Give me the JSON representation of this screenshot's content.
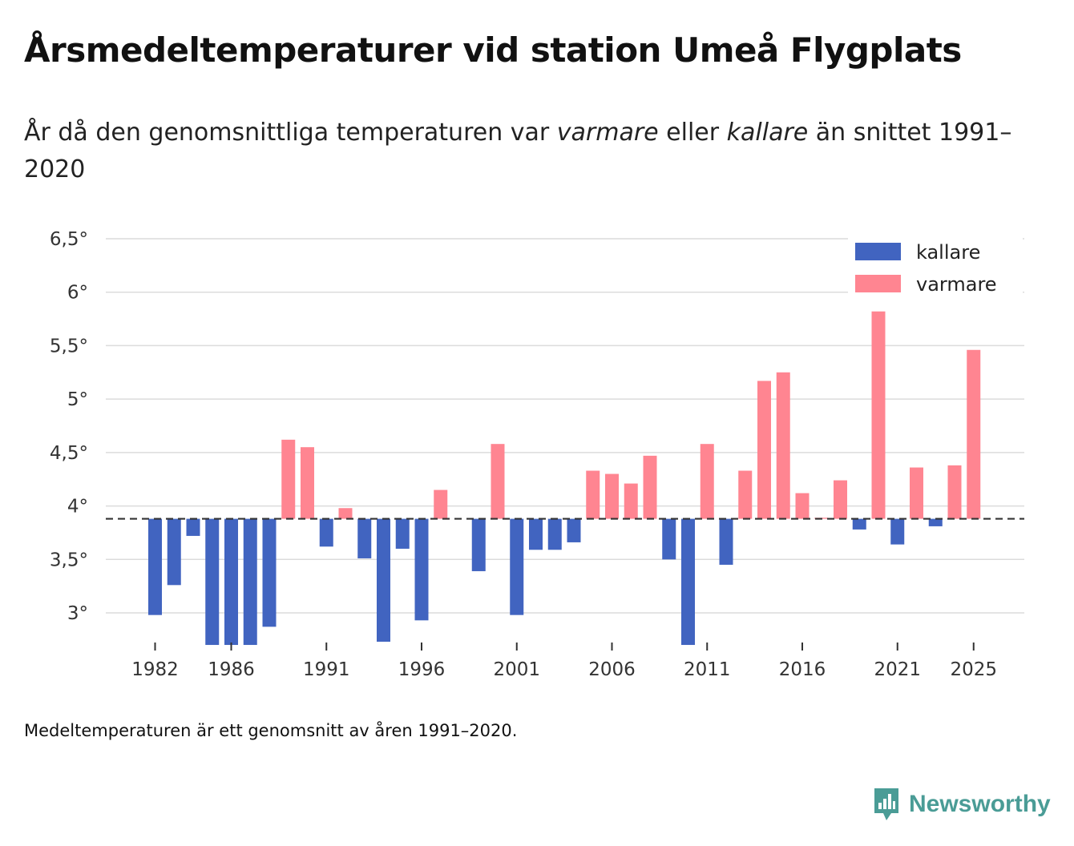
{
  "title": "Årsmedeltemperaturer vid station Umeå Flygplats",
  "subtitle": {
    "part1": "År då den genomsnittliga temperaturen var ",
    "warm_word": "varmare",
    "part2": " eller ",
    "cold_word": "kallare",
    "part3": " än snittet 1991–2020"
  },
  "footnote": "Medeltemperaturen är ett genomsnitt av åren 1991–2020.",
  "brand": "Newsworthy",
  "colors": {
    "kallare": "#4164c0",
    "varmare": "#ff8591",
    "grid": "#dcdcdc",
    "baseline": "#333333",
    "brand": "#4a9c96"
  },
  "chart_data": {
    "type": "bar",
    "title": "Årsmedeltemperaturer vid station Umeå Flygplats",
    "xlabel": "",
    "ylabel": "",
    "baseline": 3.88,
    "ylim": [
      2.7,
      6.5
    ],
    "yticks": [
      3,
      3.5,
      4,
      4.5,
      5,
      5.5,
      6,
      6.5
    ],
    "ytick_labels": [
      "3°",
      "3,5°",
      "4°",
      "4,5°",
      "5°",
      "5,5°",
      "6°",
      "6,5°"
    ],
    "xticks": [
      1982,
      1986,
      1991,
      1996,
      2001,
      2006,
      2011,
      2016,
      2021,
      2025
    ],
    "legend": [
      {
        "key": "kallare",
        "label": "kallare"
      },
      {
        "key": "varmare",
        "label": "varmare"
      }
    ],
    "legend_position": "top-right",
    "x": [
      1982,
      1983,
      1984,
      1985,
      1986,
      1987,
      1988,
      1989,
      1990,
      1991,
      1992,
      1993,
      1994,
      1995,
      1996,
      1997,
      1998,
      1999,
      2000,
      2001,
      2002,
      2003,
      2004,
      2005,
      2006,
      2007,
      2008,
      2009,
      2010,
      2011,
      2012,
      2013,
      2014,
      2015,
      2016,
      2017,
      2018,
      2019,
      2020,
      2021,
      2022,
      2023,
      2024,
      2025
    ],
    "values": [
      2.98,
      3.26,
      3.72,
      2.7,
      2.7,
      2.7,
      2.87,
      4.62,
      4.55,
      3.62,
      3.98,
      3.51,
      2.73,
      3.6,
      2.93,
      4.15,
      null,
      3.39,
      4.58,
      2.98,
      3.59,
      3.59,
      3.66,
      4.33,
      4.3,
      4.21,
      4.47,
      3.5,
      2.7,
      4.58,
      3.45,
      4.33,
      5.17,
      5.25,
      4.12,
      3.89,
      4.24,
      3.78,
      5.82,
      3.64,
      4.36,
      3.81,
      4.38,
      5.46
    ]
  }
}
